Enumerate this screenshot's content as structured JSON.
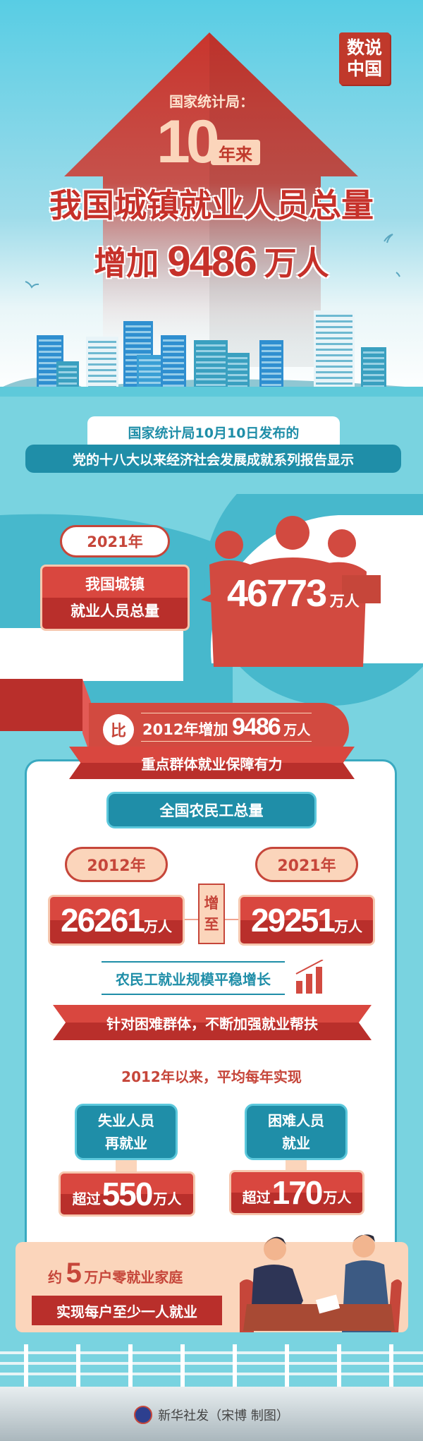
{
  "hero": {
    "seal": [
      "数说",
      "中国"
    ],
    "source": "国家统计局：",
    "years_number": "10",
    "years_label": "年来",
    "headline_line1": "我国城镇就业人员总量",
    "headline_increase": "增加",
    "headline_value": "9486",
    "headline_unit": "万人"
  },
  "intro": {
    "line1": "国家统计局10月10日发布的",
    "line2": "党的十八大以来经济社会发展成就系列报告显示"
  },
  "total": {
    "year": "2021年",
    "label_line1": "我国城镇",
    "label_line2": "就业人员总量",
    "value": "46773",
    "unit": "万人",
    "compare_prefix": "比",
    "compare_text": "2012年增加",
    "compare_value": "9486",
    "compare_unit": "万人"
  },
  "groups": {
    "section_title": "重点群体就业保障有力",
    "migrant_title": "全国农民工总量",
    "year_from": "2012年",
    "year_to": "2021年",
    "value_from": "26261",
    "value_to": "29251",
    "unit": "万人",
    "increase_to": [
      "增",
      "至"
    ],
    "trend_text": "农民工就业规模平稳增长",
    "support_title": "针对困难群体，不断加强就业帮扶",
    "since_text": "2012年以来，平均每年实现",
    "cards": [
      {
        "label_line1": "失业人员",
        "label_line2": "再就业",
        "prefix": "超过",
        "value": "550",
        "unit": "万人"
      },
      {
        "label_line1": "困难人员",
        "label_line2": "就业",
        "prefix": "超过",
        "value": "170",
        "unit": "万人"
      }
    ],
    "household_prefix": "约",
    "household_value": "5",
    "household_text": "万户零就业家庭",
    "household_line2": "实现每户至少一人就业"
  },
  "footer": {
    "credit": "新华社发（宋博 制图）"
  },
  "colors": {
    "red": "#c6312a",
    "teal": "#1f8ea8",
    "light_teal": "#79d3e0",
    "peach": "#fbd5bb"
  }
}
